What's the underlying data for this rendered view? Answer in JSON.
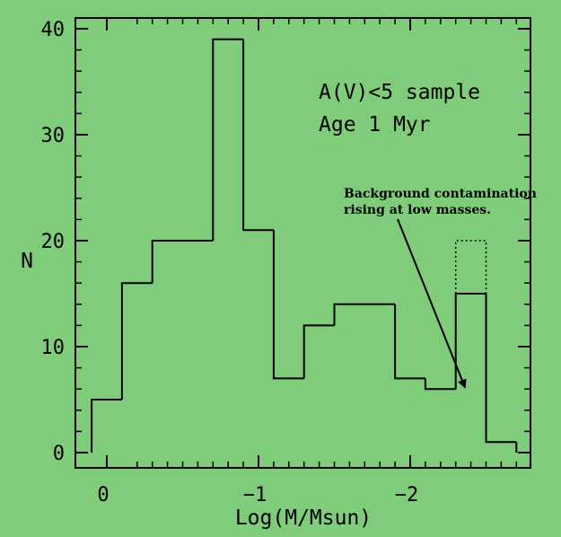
{
  "page": {
    "background": "#7fcc7a"
  },
  "chart_data": {
    "type": "bar",
    "style": "step-histogram",
    "title": "",
    "xlabel": "Log(M/Msun)",
    "ylabel": "N",
    "xlim": [
      0.12,
      -2.72
    ],
    "ylim": [
      0,
      40
    ],
    "x_inverted": true,
    "grid": false,
    "x_ticks": [
      {
        "value": 0,
        "label": "0"
      },
      {
        "value": -1,
        "label": "−1"
      },
      {
        "value": -2,
        "label": "−2"
      }
    ],
    "y_ticks": [
      {
        "value": 0,
        "label": "0"
      },
      {
        "value": 10,
        "label": "10"
      },
      {
        "value": 20,
        "label": "20"
      },
      {
        "value": 30,
        "label": "30"
      },
      {
        "value": 40,
        "label": "40"
      }
    ],
    "bin_edges": [
      0.1,
      -0.1,
      -0.3,
      -0.7,
      -0.9,
      -1.1,
      -1.3,
      -1.5,
      -1.9,
      -2.1,
      -2.3,
      -2.5,
      -2.7
    ],
    "series": [
      {
        "values": [
          5,
          16,
          20,
          39,
          21,
          7,
          12,
          14,
          7,
          6,
          15,
          1
        ],
        "line_style": "solid",
        "color": "#000000"
      },
      {
        "values": [
          null,
          null,
          null,
          null,
          null,
          null,
          null,
          null,
          null,
          null,
          20,
          null
        ],
        "line_style": "dotted",
        "color": "#000000"
      }
    ],
    "annotations": [
      {
        "text": "A(V)<5 sample",
        "position": "upper-right"
      },
      {
        "text": "Age 1 Myr",
        "position": "upper-right"
      },
      {
        "text": "Background contamination",
        "position": "right",
        "style": "serif"
      },
      {
        "text": "rising at low masses.",
        "position": "right",
        "style": "serif"
      }
    ],
    "arrow": {
      "from_text": "Background contamination",
      "to": {
        "x": -2.36,
        "y": 6.2
      }
    }
  }
}
